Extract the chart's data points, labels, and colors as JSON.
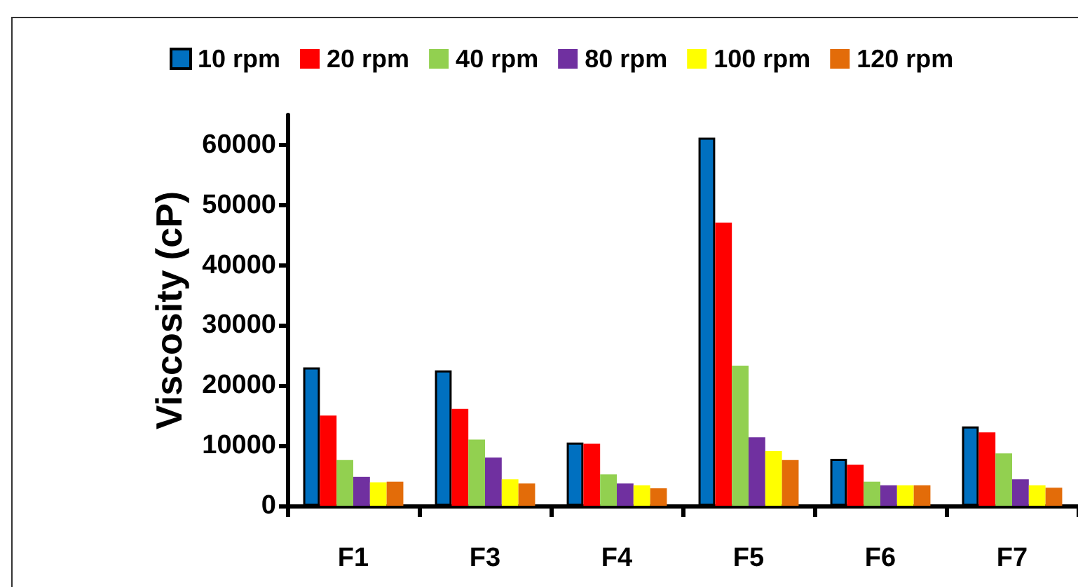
{
  "chart_data": {
    "type": "bar",
    "ylabel": "Viscosity (cP)",
    "categories": [
      "F1",
      "F3",
      "F4",
      "F5",
      "F6",
      "F7"
    ],
    "series": [
      {
        "name": "10 rpm",
        "color": "#0070c0",
        "values": [
          23000,
          22500,
          10500,
          61200,
          7800,
          13200
        ]
      },
      {
        "name": "20 rpm",
        "color": "#ff0000",
        "values": [
          15000,
          16100,
          10300,
          47100,
          6800,
          12200
        ]
      },
      {
        "name": "40 rpm",
        "color": "#92d050",
        "values": [
          7600,
          11000,
          5200,
          23300,
          4000,
          8700
        ]
      },
      {
        "name": "80 rpm",
        "color": "#7030a0",
        "values": [
          4800,
          8000,
          3700,
          11400,
          3400,
          4400
        ]
      },
      {
        "name": "100 rpm",
        "color": "#ffff00",
        "values": [
          3900,
          4400,
          3400,
          9100,
          3400,
          3400
        ]
      },
      {
        "name": "120 rpm",
        "color": "#e36c09",
        "values": [
          4000,
          3700,
          2900,
          7600,
          3400,
          3000
        ]
      }
    ],
    "ylim": [
      0,
      65000
    ],
    "yticks": [
      0,
      10000,
      20000,
      30000,
      40000,
      50000,
      60000
    ],
    "grid": false,
    "legend": "top"
  }
}
